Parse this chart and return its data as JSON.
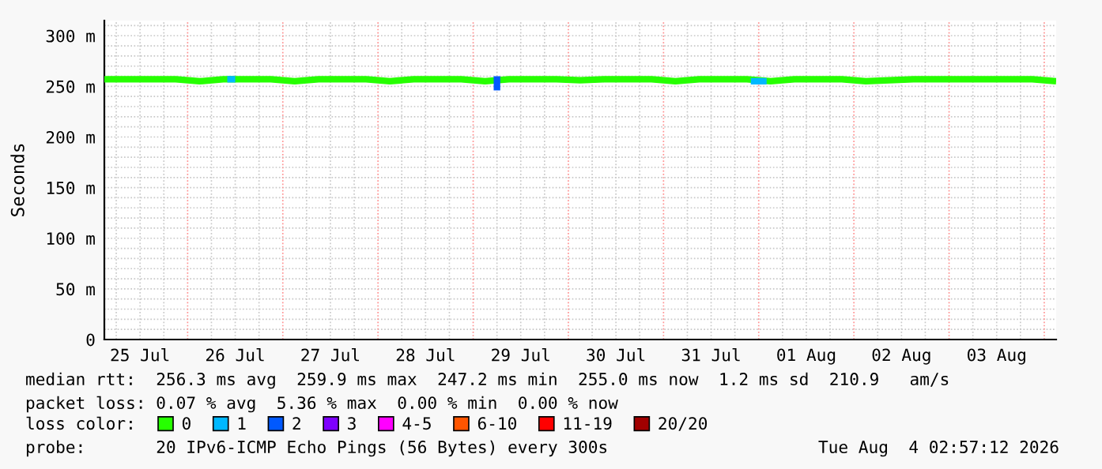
{
  "chart_data": {
    "type": "line",
    "ylabel": "Seconds",
    "xlim": [
      "2026-07-25T03:00",
      "2026-08-04T03:00"
    ],
    "xticks": [
      {
        "value": "2026-07-25T12:00",
        "label": "25 Jul"
      },
      {
        "value": "2026-07-26T12:00",
        "label": "26 Jul"
      },
      {
        "value": "2026-07-27T12:00",
        "label": "27 Jul"
      },
      {
        "value": "2026-07-28T12:00",
        "label": "28 Jul"
      },
      {
        "value": "2026-07-29T12:00",
        "label": "29 Jul"
      },
      {
        "value": "2026-07-30T12:00",
        "label": "30 Jul"
      },
      {
        "value": "2026-07-31T12:00",
        "label": "31 Jul"
      },
      {
        "value": "2026-08-01T12:00",
        "label": "01 Aug"
      },
      {
        "value": "2026-08-02T12:00",
        "label": "02 Aug"
      },
      {
        "value": "2026-08-03T12:00",
        "label": "03 Aug"
      },
      {
        "value": "2026-07-26T00:00",
        "label": null
      },
      {
        "value": "2026-07-27T00:00",
        "label": null
      },
      {
        "value": "2026-07-28T00:00",
        "label": null
      },
      {
        "value": "2026-07-29T00:00",
        "label": null
      },
      {
        "value": "2026-07-30T00:00",
        "label": null
      },
      {
        "value": "2026-07-31T00:00",
        "label": null
      },
      {
        "value": "2026-08-01T00:00",
        "label": null
      },
      {
        "value": "2026-08-02T00:00",
        "label": null
      },
      {
        "value": "2026-08-03T00:00",
        "label": null
      },
      {
        "value": "2026-08-04T00:00",
        "label": null
      }
    ],
    "ylim": [
      0,
      315
    ],
    "yticks": [
      0,
      {
        "value": 50,
        "label": "50 m"
      },
      {
        "value": 100,
        "label": "100 m"
      },
      {
        "value": 150,
        "label": "150 m"
      },
      {
        "value": 200,
        "label": "200 m"
      },
      {
        "value": 250,
        "label": "250 m"
      },
      {
        "value": 300,
        "label": "300 m"
      }
    ],
    "grid": true,
    "legend": "bottom",
    "legend_title": "loss color:",
    "line_style": "solid",
    "marker": "none",
    "series": [
      {
        "name": "0",
        "color": "#26ff00",
        "x": [
          "2026-07-25T03:00",
          "2026-07-25T09:00",
          "2026-07-25T15:00",
          "2026-07-25T21:00",
          "2026-07-26T03:00",
          "2026-07-26T09:00",
          "2026-07-26T15:00",
          "2026-07-26T21:00",
          "2026-07-27T03:00",
          "2026-07-27T09:00",
          "2026-07-27T15:00",
          "2026-07-27T21:00",
          "2026-07-28T03:00",
          "2026-07-28T09:00",
          "2026-07-28T15:00",
          "2026-07-28T21:00",
          "2026-07-29T03:00",
          "2026-07-29T09:00",
          "2026-07-29T15:00",
          "2026-07-29T21:00",
          "2026-07-30T03:00",
          "2026-07-30T09:00",
          "2026-07-30T15:00",
          "2026-07-30T21:00",
          "2026-07-31T03:00",
          "2026-07-31T09:00",
          "2026-07-31T15:00",
          "2026-07-31T21:00",
          "2026-08-01T03:00",
          "2026-08-01T09:00",
          "2026-08-01T15:00",
          "2026-08-01T21:00",
          "2026-08-02T03:00",
          "2026-08-02T09:00",
          "2026-08-02T15:00",
          "2026-08-02T21:00",
          "2026-08-03T03:00",
          "2026-08-03T09:00",
          "2026-08-03T15:00",
          "2026-08-03T21:00",
          "2026-08-04T03:00"
        ],
        "values": [
          257,
          257,
          257,
          257,
          255,
          257,
          257,
          257,
          255,
          257,
          257,
          257,
          255,
          257,
          257,
          257,
          255,
          257,
          257,
          257,
          256,
          257,
          257,
          257,
          255,
          257,
          257,
          257,
          255,
          257,
          257,
          257,
          255,
          256,
          257,
          257,
          257,
          257,
          257,
          257,
          255
        ]
      },
      {
        "name": "1",
        "color": "#00b8ff",
        "x": [
          "2026-07-26T10:00",
          "2026-07-26T12:00",
          "2026-07-26T13:00",
          "2026-07-31T22:00",
          "2026-08-01T02:00"
        ],
        "values": [
          257,
          257,
          null,
          255,
          255
        ]
      },
      {
        "name": "2",
        "color": "#0059ff",
        "x": [
          "2026-07-29T06:00",
          "2026-07-29T06:00"
        ],
        "values": [
          260,
          246
        ]
      },
      {
        "name": "3",
        "color": "#7e00ff"
      },
      {
        "name": "4-5",
        "color": "#ff00ff"
      },
      {
        "name": "6-10",
        "color": "#ff5500"
      },
      {
        "name": "11-19",
        "color": "#ff0000"
      },
      {
        "name": "20/20",
        "color": "#a10000"
      }
    ],
    "annotations": [
      "median rtt:  256.3 ms avg  259.9 ms max  247.2 ms min  255.0 ms now  1.2 ms sd  210.9   am/s",
      "packet loss: 0.07 % avg  5.36 % max  0.00 % min  0.00 % now",
      "probe:       20 IPv6-ICMP Echo Pings (56 Bytes) every 300s",
      "Tue Aug  4 02:57:12 2026"
    ]
  }
}
